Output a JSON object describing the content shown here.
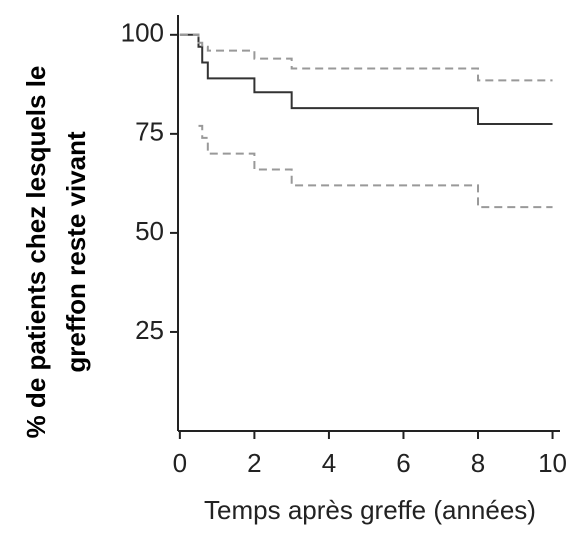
{
  "chart_data": {
    "type": "line",
    "step": true,
    "xlabel": "Temps après greffe (années)",
    "ylabel": [
      "% de patients chez lesquels le",
      "greffon reste vivant"
    ],
    "x": [
      0,
      0.5,
      0.6,
      0.75,
      2,
      3,
      8,
      10
    ],
    "series": [
      {
        "color": "#333333",
        "dash": false,
        "values": [
          100,
          97,
          93,
          89,
          85.5,
          81.5,
          77.5,
          77.5
        ]
      },
      {
        "color": "#999999",
        "dash": true,
        "values": [
          100,
          98,
          97,
          96,
          94,
          91.5,
          88.5,
          88.5
        ]
      },
      {
        "color": "#999999",
        "dash": true,
        "values": [
          null,
          77,
          74,
          70,
          66,
          62,
          56.5,
          56.5
        ]
      }
    ],
    "xlim": [
      -0.05,
      10.2
    ],
    "xticks": [
      0,
      2,
      4,
      6,
      8,
      10
    ],
    "ylim": [
      0,
      105
    ],
    "yticks": [
      25,
      50,
      75,
      100
    ],
    "grid": false
  }
}
